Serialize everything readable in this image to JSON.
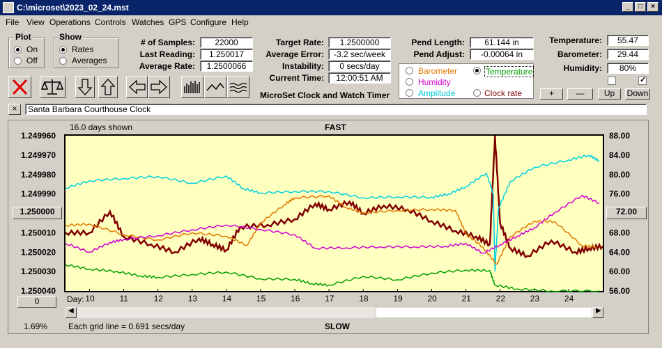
{
  "window": {
    "title": "C:\\microset\\2023_02_24.mst"
  },
  "menu": [
    "File",
    "View",
    "Operations",
    "Controls",
    "Watches",
    "GPS",
    "Configure",
    "Help"
  ],
  "plot_group": {
    "title": "Plot",
    "on": "On",
    "off": "Off",
    "selected": "On"
  },
  "show_group": {
    "title": "Show",
    "rates": "Rates",
    "averages": "Averages",
    "selected": "Rates"
  },
  "stats": {
    "samples_label": "# of Samples:",
    "samples": "22000",
    "last_reading_label": "Last Reading:",
    "last_reading": "1.250017",
    "average_rate_label": "Average Rate:",
    "average_rate": "1.2500066",
    "target_rate_label": "Target Rate:",
    "target_rate": "1.2500000",
    "average_error_label": "Average Error:",
    "average_error": "-3.2 sec/week",
    "instability_label": "Instability:",
    "instability": "0 secs/day",
    "current_time_label": "Current Time:",
    "current_time": "12:00:51 AM",
    "pend_length_label": "Pend Length:",
    "pend_length": "61.144 in",
    "pend_adjust_label": "Pend Adjust:",
    "pend_adjust": "-0.00064 in",
    "temperature_label": "Temperature:",
    "temperature": "55.47",
    "barometer_label": "Barometer:",
    "barometer": "29.44",
    "humidity_label": "Humidity:",
    "humidity": "80%"
  },
  "app_heading": "MicroSet Clock and Watch Timer",
  "overlay": {
    "barometer": "Barometer",
    "temperature": "Temperature",
    "humidity": "Humidity",
    "amplitude": "Amplitude",
    "clock_rate": "Clock rate",
    "selected": "Temperature",
    "colors": {
      "barometer": "#e07800",
      "temperature": "#00a000",
      "humidity": "#d000d0",
      "amplitude": "#00d0e0",
      "clock_rate": "#800000"
    }
  },
  "scale_buttons": {
    "plus": "+",
    "minus": "—",
    "up": "Up",
    "down": "Down"
  },
  "note_field": "Santa Barbara Courthouse Clock",
  "graph": {
    "days_shown": "16.0 days shown",
    "fast": "FAST",
    "slow": "SLOW",
    "left_button": "1.250000",
    "right_button": "72.00",
    "zero_button": "0",
    "percent": "1.69%",
    "grid_note": "Each grid line = 0.691 secs/day",
    "day_label": "Day:"
  },
  "chart_data": {
    "type": "line",
    "title": "",
    "xlabel": "Day:",
    "x_ticks": [
      10,
      11,
      12,
      13,
      14,
      15,
      16,
      17,
      18,
      19,
      20,
      21,
      22,
      23,
      24
    ],
    "xlim": [
      9.3,
      25
    ],
    "y_left_ticks": [
      "1.249960",
      "1.249970",
      "1.249980",
      "1.249990",
      "1.250000",
      "1.250010",
      "1.250020",
      "1.250030",
      "1.250040"
    ],
    "y_left_range": [
      1.24996,
      1.25004
    ],
    "y_left_inverted": true,
    "y_right_ticks": [
      88.0,
      84.0,
      80.0,
      76.0,
      72.0,
      68.0,
      64.0,
      60.0,
      56.0
    ],
    "y_right_range": [
      56,
      88
    ],
    "series": [
      {
        "name": "Clock rate",
        "color": "#800000",
        "axis": "left",
        "points": [
          [
            9.3,
            1.25001
          ],
          [
            10,
            1.25001
          ],
          [
            10.6,
            1.249999
          ],
          [
            11,
            1.250012
          ],
          [
            11.8,
            1.250016
          ],
          [
            12.5,
            1.25002
          ],
          [
            13.2,
            1.250013
          ],
          [
            13.6,
            1.250016
          ],
          [
            14,
            1.250019
          ],
          [
            14.4,
            1.250007
          ],
          [
            15.2,
            1.250006
          ],
          [
            16,
            1.250003
          ],
          [
            16.6,
            1.249995
          ],
          [
            17,
            1.249998
          ],
          [
            17.6,
            1.249994
          ],
          [
            18,
            1.25
          ],
          [
            18.6,
            1.249996
          ],
          [
            19.3,
            1.249998
          ],
          [
            20,
            1.250004
          ],
          [
            20.7,
            1.250009
          ],
          [
            21.3,
            1.250012
          ],
          [
            21.7,
            1.250016
          ],
          [
            21.85,
            1.24996
          ],
          [
            22,
            1.250005
          ],
          [
            22.3,
            1.250018
          ],
          [
            22.8,
            1.250022
          ],
          [
            23.5,
            1.250014
          ],
          [
            24.2,
            1.25002
          ],
          [
            24.6,
            1.250018
          ],
          [
            25,
            1.250017
          ]
        ]
      },
      {
        "name": "Amplitude",
        "color": "#00d0e0",
        "axis": "right",
        "points": [
          [
            9.3,
            77.2
          ],
          [
            10,
            78.7
          ],
          [
            11,
            79.2
          ],
          [
            12,
            79.6
          ],
          [
            13,
            78.2
          ],
          [
            14,
            79.7
          ],
          [
            14.5,
            77.1
          ],
          [
            15,
            76.2
          ],
          [
            16,
            76.5
          ],
          [
            17,
            76.5
          ],
          [
            18,
            75.2
          ],
          [
            19,
            75.4
          ],
          [
            20,
            75.3
          ],
          [
            20.5,
            76.0
          ],
          [
            21,
            77.5
          ],
          [
            21.6,
            80.3
          ],
          [
            21.8,
            76.0
          ],
          [
            21.85,
            60.0
          ],
          [
            21.95,
            73.0
          ],
          [
            22.3,
            78.6
          ],
          [
            23,
            81.5
          ],
          [
            24,
            83.0
          ],
          [
            24.6,
            84.0
          ],
          [
            24.9,
            82.8
          ]
        ]
      },
      {
        "name": "Barometer",
        "color": "#e07800",
        "axis": "right",
        "points": [
          [
            9.3,
            69.5
          ],
          [
            10,
            69.8
          ],
          [
            11,
            67.6
          ],
          [
            12,
            66.5
          ],
          [
            13,
            68.0
          ],
          [
            14,
            67.3
          ],
          [
            14.6,
            65.4
          ],
          [
            15,
            70.0
          ],
          [
            15.7,
            73.8
          ],
          [
            16,
            75.2
          ],
          [
            17,
            75.6
          ],
          [
            17.5,
            73.2
          ],
          [
            18,
            72.1
          ],
          [
            19,
            72.6
          ],
          [
            20,
            72.8
          ],
          [
            20.7,
            72.6
          ],
          [
            21,
            67.8
          ],
          [
            21.5,
            65.0
          ],
          [
            21.9,
            61.5
          ],
          [
            22.3,
            67.2
          ],
          [
            23,
            70.4
          ],
          [
            23.6,
            70.3
          ],
          [
            24.4,
            65.3
          ],
          [
            24.8,
            65.1
          ]
        ]
      },
      {
        "name": "Humidity",
        "color": "#d000d0",
        "axis": "right",
        "points": [
          [
            9.3,
            65.8
          ],
          [
            10,
            64.0
          ],
          [
            10.6,
            66.0
          ],
          [
            11,
            66.6
          ],
          [
            12,
            67.4
          ],
          [
            13,
            68.6
          ],
          [
            14,
            69.6
          ],
          [
            15,
            68.7
          ],
          [
            16,
            67.6
          ],
          [
            16.6,
            64.8
          ],
          [
            17.5,
            64.9
          ],
          [
            18.5,
            65.1
          ],
          [
            19.5,
            65.1
          ],
          [
            20.4,
            65.2
          ],
          [
            21,
            65.8
          ],
          [
            21.5,
            63.8
          ],
          [
            22,
            65.5
          ],
          [
            22.5,
            67.3
          ],
          [
            23,
            69.0
          ],
          [
            23.6,
            72.2
          ],
          [
            24.4,
            75.7
          ],
          [
            24.9,
            74.1
          ]
        ]
      },
      {
        "name": "Temperature",
        "color": "#00a000",
        "axis": "right",
        "points": [
          [
            9.3,
            61.4
          ],
          [
            10,
            60.5
          ],
          [
            10.8,
            60.0
          ],
          [
            11.5,
            59.1
          ],
          [
            12,
            58.8
          ],
          [
            13,
            59.4
          ],
          [
            14,
            59.9
          ],
          [
            15,
            58.5
          ],
          [
            16,
            58.4
          ],
          [
            16.5,
            57.5
          ],
          [
            17,
            57.2
          ],
          [
            18,
            59.0
          ],
          [
            19,
            58.3
          ],
          [
            20,
            59.7
          ],
          [
            21,
            60.3
          ],
          [
            21.7,
            60.2
          ],
          [
            21.85,
            57.2
          ],
          [
            22.5,
            56.4
          ],
          [
            23.5,
            56.0
          ],
          [
            24.9,
            56.0
          ]
        ]
      }
    ]
  }
}
